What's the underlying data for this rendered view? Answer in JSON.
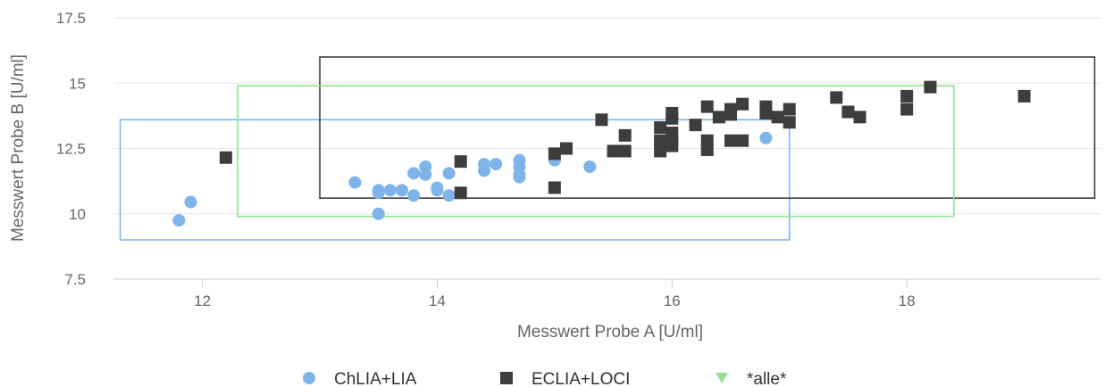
{
  "chart_data": {
    "type": "scatter",
    "title": "",
    "xlabel": "Messwert Probe A [U/ml]",
    "ylabel": "Messwert Probe B [U/ml]",
    "xlim": [
      11.25,
      19.65
    ],
    "ylim": [
      7.5,
      17.5
    ],
    "xticks": [
      12,
      14,
      16,
      18
    ],
    "yticks": [
      7.5,
      10,
      12.5,
      15,
      17.5
    ],
    "xtick_labels": [
      "12",
      "14",
      "16",
      "18"
    ],
    "ytick_labels": [
      "7.5",
      "10",
      "12.5",
      "15",
      "17.5"
    ],
    "grid": "horizontal",
    "legend_position": "bottom-center",
    "series": [
      {
        "name": "ChLIA+LIA",
        "marker": "circle",
        "color": "#7eb4ea",
        "points": [
          [
            11.8,
            9.75
          ],
          [
            11.9,
            10.45
          ],
          [
            13.3,
            11.2
          ],
          [
            13.5,
            10.8
          ],
          [
            13.5,
            10.9
          ],
          [
            13.5,
            10.0
          ],
          [
            13.6,
            10.9
          ],
          [
            13.7,
            10.9
          ],
          [
            13.8,
            11.55
          ],
          [
            13.8,
            10.7
          ],
          [
            13.9,
            11.8
          ],
          [
            13.9,
            11.5
          ],
          [
            14.0,
            11.0
          ],
          [
            14.0,
            10.9
          ],
          [
            14.1,
            11.55
          ],
          [
            14.1,
            10.7
          ],
          [
            14.4,
            11.9
          ],
          [
            14.4,
            11.65
          ],
          [
            14.5,
            11.9
          ],
          [
            14.7,
            12.05
          ],
          [
            14.7,
            11.8
          ],
          [
            14.7,
            11.5
          ],
          [
            14.7,
            11.4
          ],
          [
            15.0,
            12.05
          ],
          [
            15.3,
            11.8
          ],
          [
            16.8,
            12.9
          ]
        ]
      },
      {
        "name": "ECLIA+LOCI",
        "marker": "square",
        "color": "#3d3d3d",
        "points": [
          [
            12.2,
            12.15
          ],
          [
            14.2,
            12.0
          ],
          [
            14.2,
            10.8
          ],
          [
            15.0,
            12.3
          ],
          [
            15.0,
            11.0
          ],
          [
            15.1,
            12.5
          ],
          [
            15.4,
            13.6
          ],
          [
            15.5,
            12.4
          ],
          [
            15.6,
            13.0
          ],
          [
            15.6,
            12.4
          ],
          [
            15.9,
            13.3
          ],
          [
            15.9,
            12.8
          ],
          [
            15.9,
            12.4
          ],
          [
            16.0,
            13.85
          ],
          [
            16.0,
            13.65
          ],
          [
            16.0,
            13.1
          ],
          [
            16.0,
            12.8
          ],
          [
            16.0,
            12.6
          ],
          [
            16.2,
            13.4
          ],
          [
            16.3,
            14.1
          ],
          [
            16.3,
            12.8
          ],
          [
            16.3,
            12.45
          ],
          [
            16.4,
            13.7
          ],
          [
            16.5,
            14.0
          ],
          [
            16.5,
            13.8
          ],
          [
            16.5,
            12.8
          ],
          [
            16.6,
            14.2
          ],
          [
            16.6,
            12.8
          ],
          [
            16.8,
            14.1
          ],
          [
            16.8,
            13.85
          ],
          [
            16.9,
            13.7
          ],
          [
            17.0,
            14.0
          ],
          [
            17.0,
            13.5
          ],
          [
            17.4,
            14.45
          ],
          [
            17.5,
            13.9
          ],
          [
            17.6,
            13.7
          ],
          [
            18.0,
            14.5
          ],
          [
            18.0,
            14.0
          ],
          [
            18.2,
            14.85
          ],
          [
            19.0,
            14.5
          ]
        ]
      },
      {
        "name": "*alle*",
        "marker": "triangle-down",
        "color": "#90e28f",
        "points": []
      }
    ],
    "boxes": [
      {
        "series": "ChLIA+LIA",
        "x": [
          11.3,
          17.0
        ],
        "y": [
          9.0,
          13.6
        ]
      },
      {
        "series": "ECLIA+LOCI",
        "x": [
          13.0,
          19.6
        ],
        "y": [
          10.6,
          16.0
        ]
      },
      {
        "series": "*alle*",
        "x": [
          12.3,
          18.4
        ],
        "y": [
          9.9,
          14.9
        ]
      }
    ]
  }
}
